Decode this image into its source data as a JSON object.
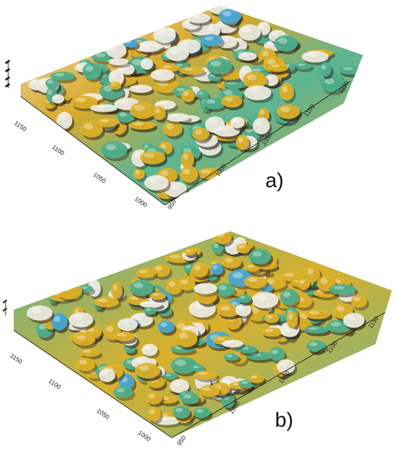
{
  "figure": {
    "panels": [
      {
        "id": "a",
        "label": "a)",
        "left_axis_ticks": [
          "1150",
          "1100",
          "1050",
          "1000"
        ],
        "right_axis_ticks": [
          "950",
          "1000",
          "1050",
          "1100",
          "1150"
        ],
        "colors": {
          "low": "#4fb08d",
          "mid": "#e0b228",
          "high": "#f0eee4",
          "peak": "#49a9d6",
          "shadow": "#2a2218"
        }
      },
      {
        "id": "b",
        "label": "b)",
        "left_axis_ticks": [
          "1150",
          "1100",
          "1050",
          "1000"
        ],
        "right_axis_ticks": [
          "950",
          "1000",
          "1050",
          "1100",
          "1150"
        ],
        "colors": {
          "low": "#4fb08d",
          "mid": "#e0b228",
          "high": "#f0eee4",
          "peak": "#49a9d6",
          "shadow": "#2a2218"
        }
      }
    ]
  }
}
